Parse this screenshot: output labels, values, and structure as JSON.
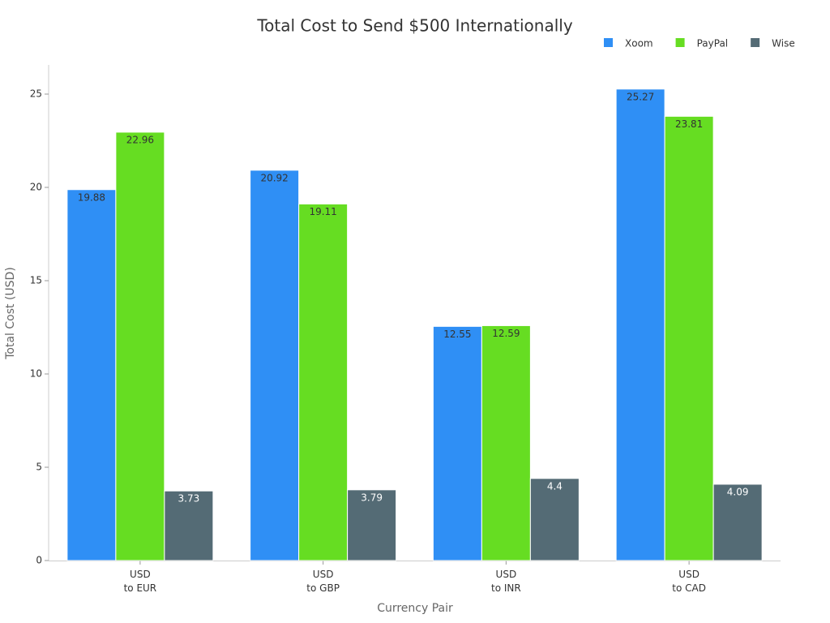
{
  "chart_data": {
    "type": "bar",
    "title": "Total Cost to Send $500 Internationally",
    "x_label": "Currency Pair",
    "y_label": "Total Cost (USD)",
    "categories": [
      "USD\nto EUR",
      "USD\nto GBP",
      "USD\nto INR",
      "USD\nto CAD"
    ],
    "series": [
      {
        "name": "Xoom",
        "color": "#2f8ff5",
        "values": [
          19.88,
          20.92,
          12.55,
          25.27
        ]
      },
      {
        "name": "PayPal",
        "color": "#66dd22",
        "values": [
          22.96,
          19.11,
          12.59,
          23.81
        ]
      },
      {
        "name": "Wise",
        "color": "#546b75",
        "values": [
          3.73,
          3.79,
          4.4,
          4.09
        ]
      }
    ],
    "ylim": [
      0,
      26.5
    ],
    "yticks": [
      0,
      5,
      10,
      15,
      20,
      25
    ],
    "grid": false,
    "legend": "top-right"
  }
}
